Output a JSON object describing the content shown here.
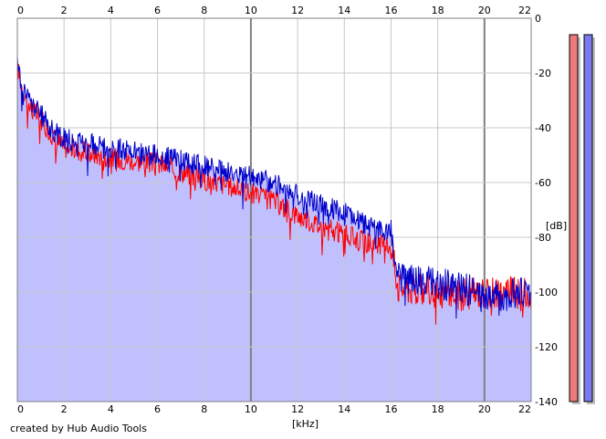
{
  "credit": "created by Hub Audio Tools",
  "chart_data": {
    "type": "area",
    "title": "",
    "xlabel": "[kHz]",
    "ylabel": "[dB]",
    "xlim": [
      0,
      22
    ],
    "ylim": [
      -140,
      0
    ],
    "x_ticks": [
      "0",
      "2",
      "4",
      "6",
      "8",
      "10",
      "12",
      "14",
      "16",
      "18",
      "20",
      "22"
    ],
    "y_ticks": [
      "0",
      "-20",
      "-40",
      "-60",
      "-80",
      "-100",
      "-120",
      "-140"
    ],
    "grid": true,
    "colors": {
      "fill": "#c0c0ff",
      "channel_1": "#ff0000",
      "channel_2": "#0000cc",
      "meter_left": "#ec7a7a",
      "meter_right": "#7a7aec"
    },
    "series": [
      {
        "color": "#ff0000",
        "x": [
          0,
          0.2,
          0.5,
          1,
          1.5,
          2,
          3,
          4,
          5,
          6,
          7,
          8,
          9,
          10,
          11,
          12,
          13,
          14,
          15,
          16,
          16.3,
          17,
          18,
          19,
          20,
          21,
          22
        ],
        "y": [
          -18,
          -25,
          -32,
          -37,
          -43,
          -47,
          -49,
          -51,
          -52,
          -53,
          -56,
          -59,
          -61,
          -64,
          -67,
          -72,
          -76,
          -79,
          -82,
          -83,
          -98,
          -99,
          -100,
          -101,
          -100,
          -100,
          -101
        ]
      },
      {
        "color": "#0000cc",
        "x": [
          0,
          0.2,
          0.5,
          1,
          1.5,
          2,
          3,
          4,
          5,
          6,
          7,
          8,
          9,
          10,
          11,
          12,
          13,
          14,
          15,
          16,
          16.3,
          17,
          18,
          19,
          20,
          21,
          22
        ],
        "y": [
          -17,
          -24,
          -30,
          -35,
          -41,
          -44,
          -46,
          -47,
          -49,
          -50,
          -52,
          -54,
          -56,
          -58,
          -60,
          -65,
          -68,
          -71,
          -76,
          -78,
          -94,
          -95,
          -97,
          -98,
          -102,
          -101,
          -100
        ]
      }
    ],
    "meters": [
      {
        "channel": "left",
        "top_db": -6
      },
      {
        "channel": "right",
        "top_db": -6
      }
    ]
  }
}
